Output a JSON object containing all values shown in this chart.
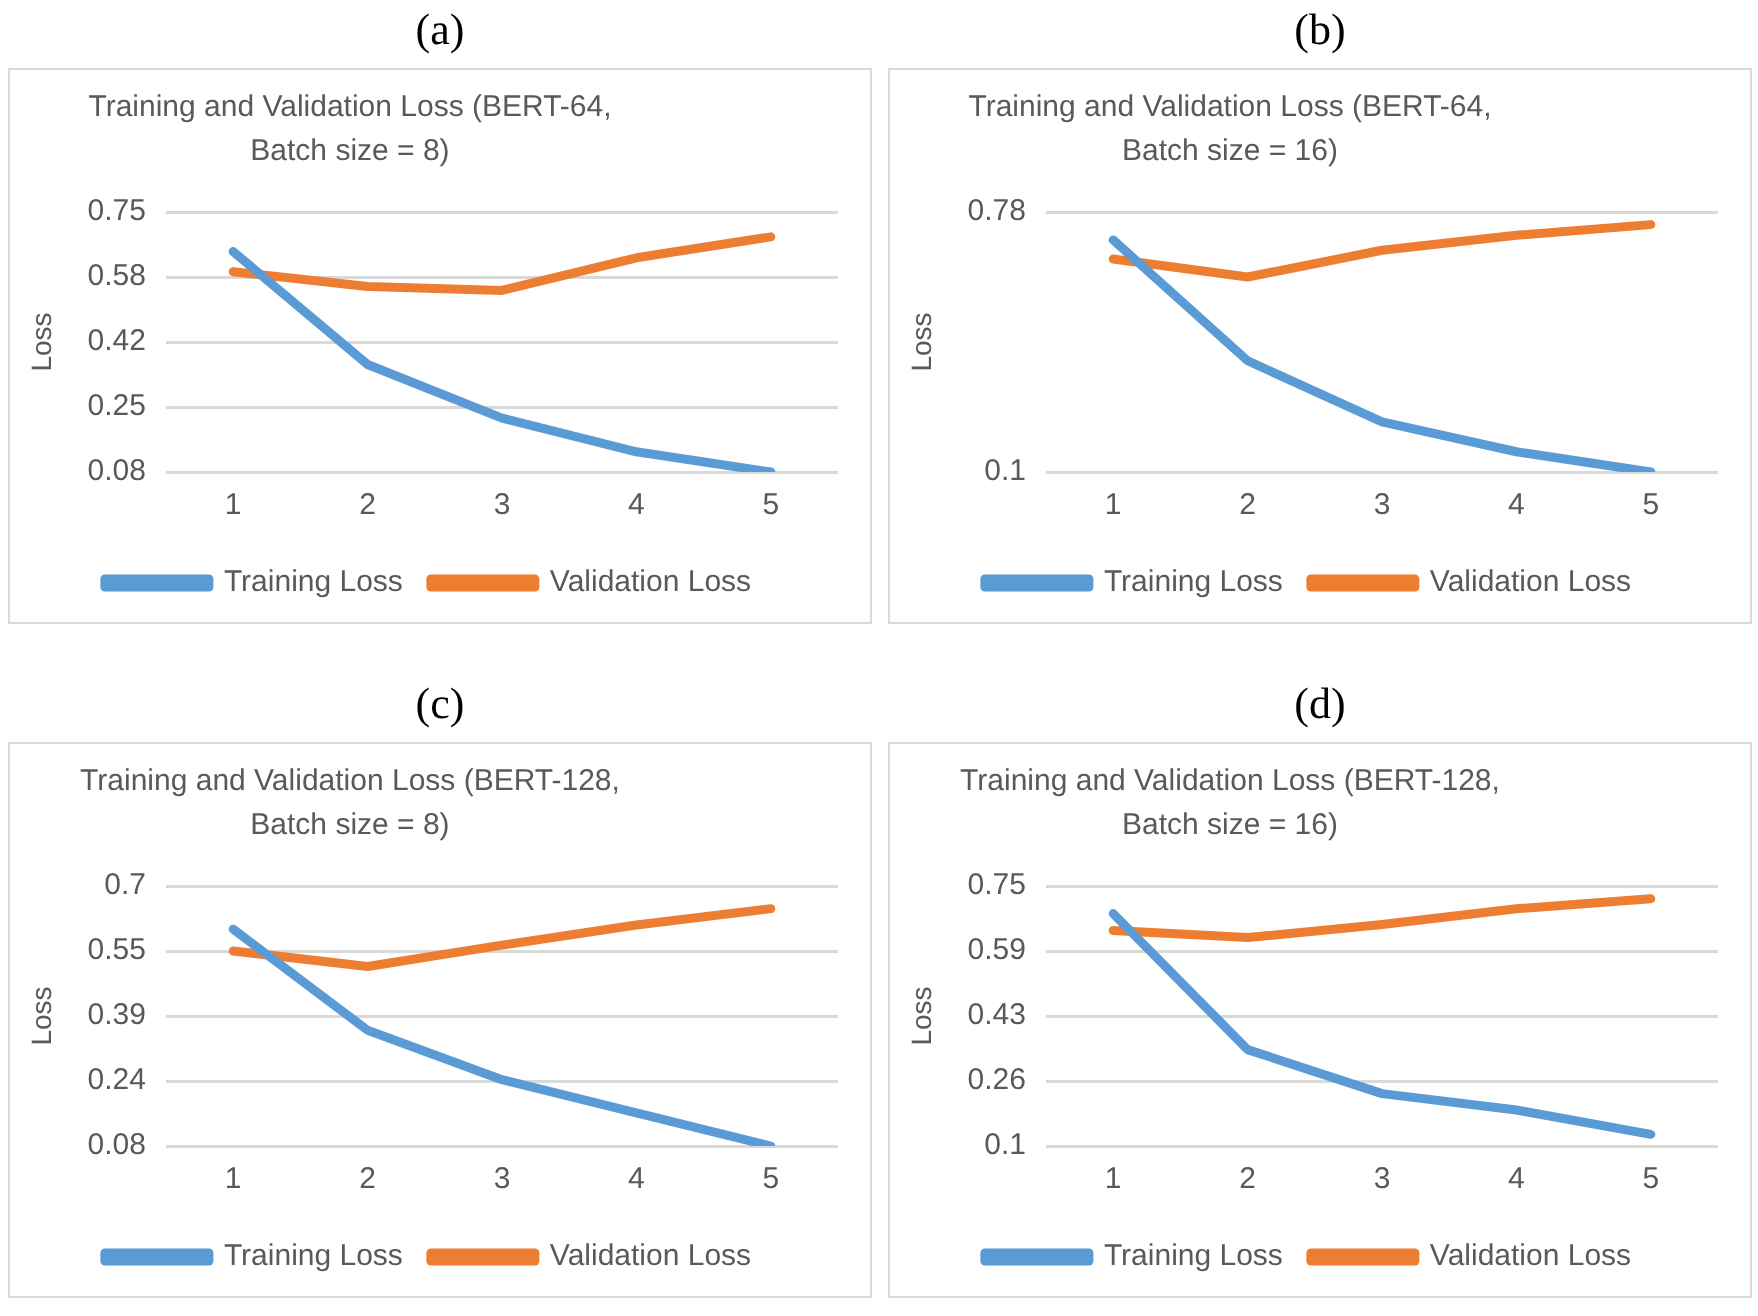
{
  "chart_data": [
    {
      "type": "line",
      "title": "Training and Validation Loss (BERT-64, Batch size = 8)",
      "annotations": [
        "(a)"
      ],
      "ylabel": "Loss",
      "categories": [
        "1",
        "2",
        "3",
        "4",
        "5"
      ],
      "ylim": [
        0.08,
        0.75
      ],
      "yticks": [
        0.08,
        {
          "value": 0.2475,
          "label": "0.25"
        },
        {
          "value": 0.415,
          "label": "0.42"
        },
        {
          "value": 0.5825,
          "label": "0.58"
        },
        0.75
      ],
      "grid": "y",
      "legend": "bottom",
      "series": [
        {
          "name": "Training Loss",
          "color": "#5b9bd5",
          "values": [
            0.648,
            0.357,
            0.219,
            0.132,
            0.08
          ]
        },
        {
          "name": "Validation Loss",
          "color": "#ed7d31",
          "values": [
            0.596,
            0.558,
            0.548,
            0.632,
            0.686
          ]
        }
      ]
    },
    {
      "type": "line",
      "title": "Training and Validation Loss (BERT-64, Batch size = 16)",
      "annotations": [
        "(b)"
      ],
      "ylabel": "Loss",
      "categories": [
        "1",
        "2",
        "3",
        "4",
        "5"
      ],
      "ylim": [
        0.1,
        0.78
      ],
      "yticks": [
        0.1,
        0.78
      ],
      "grid": "y",
      "legend": "bottom",
      "series": [
        {
          "name": "Training Loss",
          "color": "#5b9bd5",
          "values": [
            0.707,
            0.391,
            0.231,
            0.153,
            0.1
          ]
        },
        {
          "name": "Validation Loss",
          "color": "#ed7d31",
          "values": [
            0.657,
            0.61,
            0.68,
            0.719,
            0.747
          ]
        }
      ]
    },
    {
      "type": "line",
      "title": "Training and Validation Loss (BERT-128, Batch size = 8)",
      "annotations": [
        "(c)"
      ],
      "ylabel": "Loss",
      "categories": [
        "1",
        "2",
        "3",
        "4",
        "5"
      ],
      "ylim": [
        0.08,
        0.7
      ],
      "yticks": [
        0.08,
        {
          "value": 0.235,
          "label": "0.24"
        },
        0.39,
        {
          "value": 0.545,
          "label": "0.55"
        },
        0.7
      ],
      "grid": "y",
      "legend": "bottom",
      "series": [
        {
          "name": "Training Loss",
          "color": "#5b9bd5",
          "values": [
            0.597,
            0.356,
            0.238,
            0.159,
            0.08
          ]
        },
        {
          "name": "Validation Loss",
          "color": "#ed7d31",
          "values": [
            0.545,
            0.508,
            0.559,
            0.607,
            0.646
          ]
        }
      ]
    },
    {
      "type": "line",
      "title": "Training and Validation Loss (BERT-128, Batch size = 16)",
      "annotations": [
        "(d)"
      ],
      "ylabel": "Loss",
      "categories": [
        "1",
        "2",
        "3",
        "4",
        "5"
      ],
      "ylim": [
        0.1,
        0.75
      ],
      "yticks": [
        0.1,
        {
          "value": 0.2625,
          "label": "0.26"
        },
        {
          "value": 0.425,
          "label": "0.43"
        },
        {
          "value": 0.5875,
          "label": "0.59"
        },
        0.75
      ],
      "grid": "y",
      "legend": "bottom",
      "series": [
        {
          "name": "Training Loss",
          "color": "#5b9bd5",
          "values": [
            0.681,
            0.341,
            0.231,
            0.19,
            0.129
          ]
        },
        {
          "name": "Validation Loss",
          "color": "#ed7d31",
          "values": [
            0.639,
            0.621,
            0.654,
            0.693,
            0.718
          ]
        }
      ]
    }
  ]
}
